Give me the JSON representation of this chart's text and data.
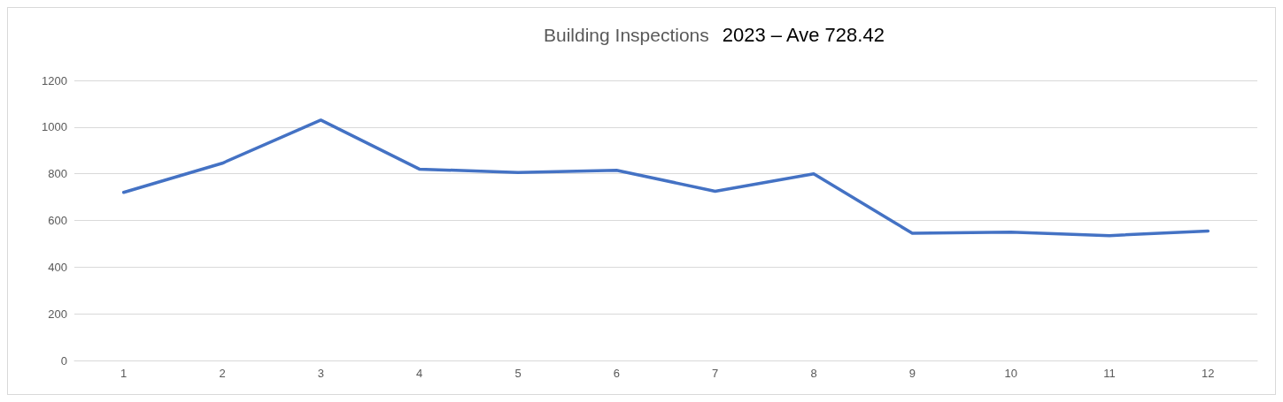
{
  "chart_data": {
    "type": "line",
    "title": "Building Inspections",
    "subtitle": "2023 – Ave 728.42",
    "categories": [
      "1",
      "2",
      "3",
      "4",
      "5",
      "6",
      "7",
      "8",
      "9",
      "10",
      "11",
      "12"
    ],
    "series": [
      {
        "color": "#4472c4",
        "values": [
          720,
          845,
          1030,
          820,
          805,
          815,
          725,
          800,
          545,
          550,
          535,
          555
        ]
      }
    ],
    "ylim": [
      0,
      1200
    ],
    "yticks": [
      0,
      200,
      400,
      600,
      800,
      1000,
      1200
    ],
    "grid": "y",
    "marker": "none",
    "line_style": "solid"
  }
}
